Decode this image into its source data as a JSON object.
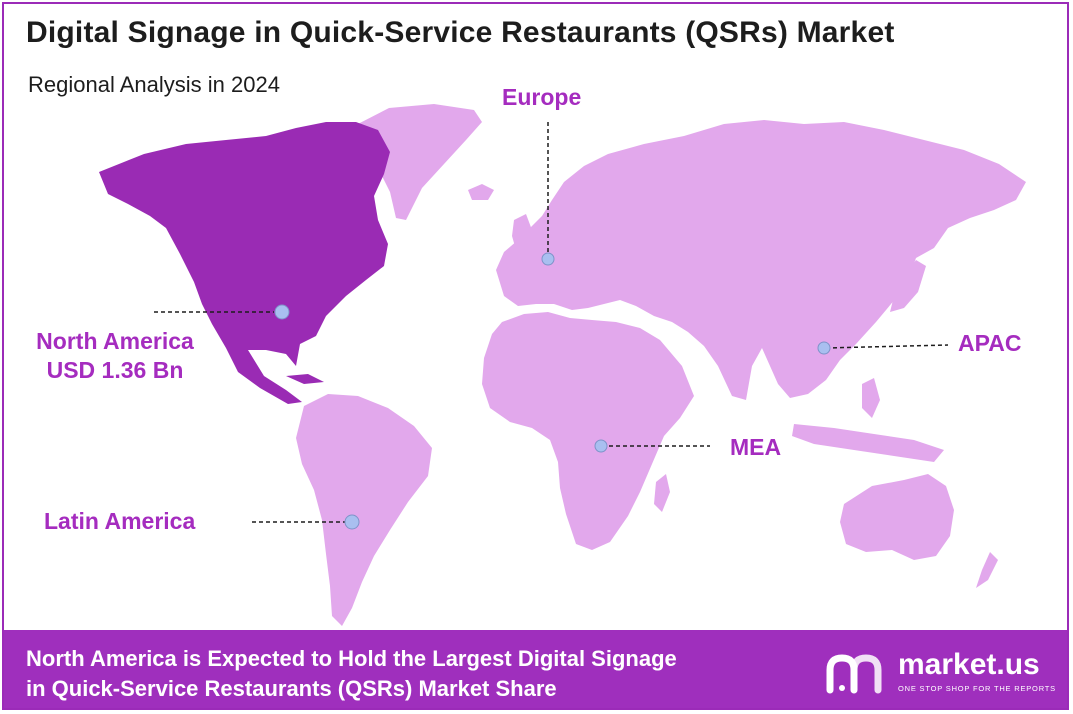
{
  "header": {
    "title": "Digital Signage in Quick-Service Restaurants (QSRs) Market",
    "subtitle": "Regional Analysis in 2024"
  },
  "regions": {
    "north_america": {
      "name": "North America",
      "value": "USD 1.36 Bn",
      "highlighted": true
    },
    "europe": {
      "name": "Europe",
      "highlighted": false
    },
    "apac": {
      "name": "APAC",
      "highlighted": false
    },
    "mea": {
      "name": "MEA",
      "highlighted": false
    },
    "latin_america": {
      "name": "Latin America",
      "highlighted": false
    }
  },
  "footer": {
    "line1": "North America is Expected to Hold the Largest Digital Signage",
    "line2": "in Quick-Service Restaurants (QSRs) Market Share"
  },
  "brand": {
    "name": "market.us",
    "tagline": "ONE STOP SHOP FOR THE REPORTS",
    "logo_icon": "market-us-logo-icon"
  },
  "colors": {
    "highlight_region": "#9a2bb4",
    "other_regions": "#e2a8ec",
    "label_text": "#a52cbf",
    "footer_bg": "#9f2fbd",
    "marker": "#a9bff0"
  }
}
